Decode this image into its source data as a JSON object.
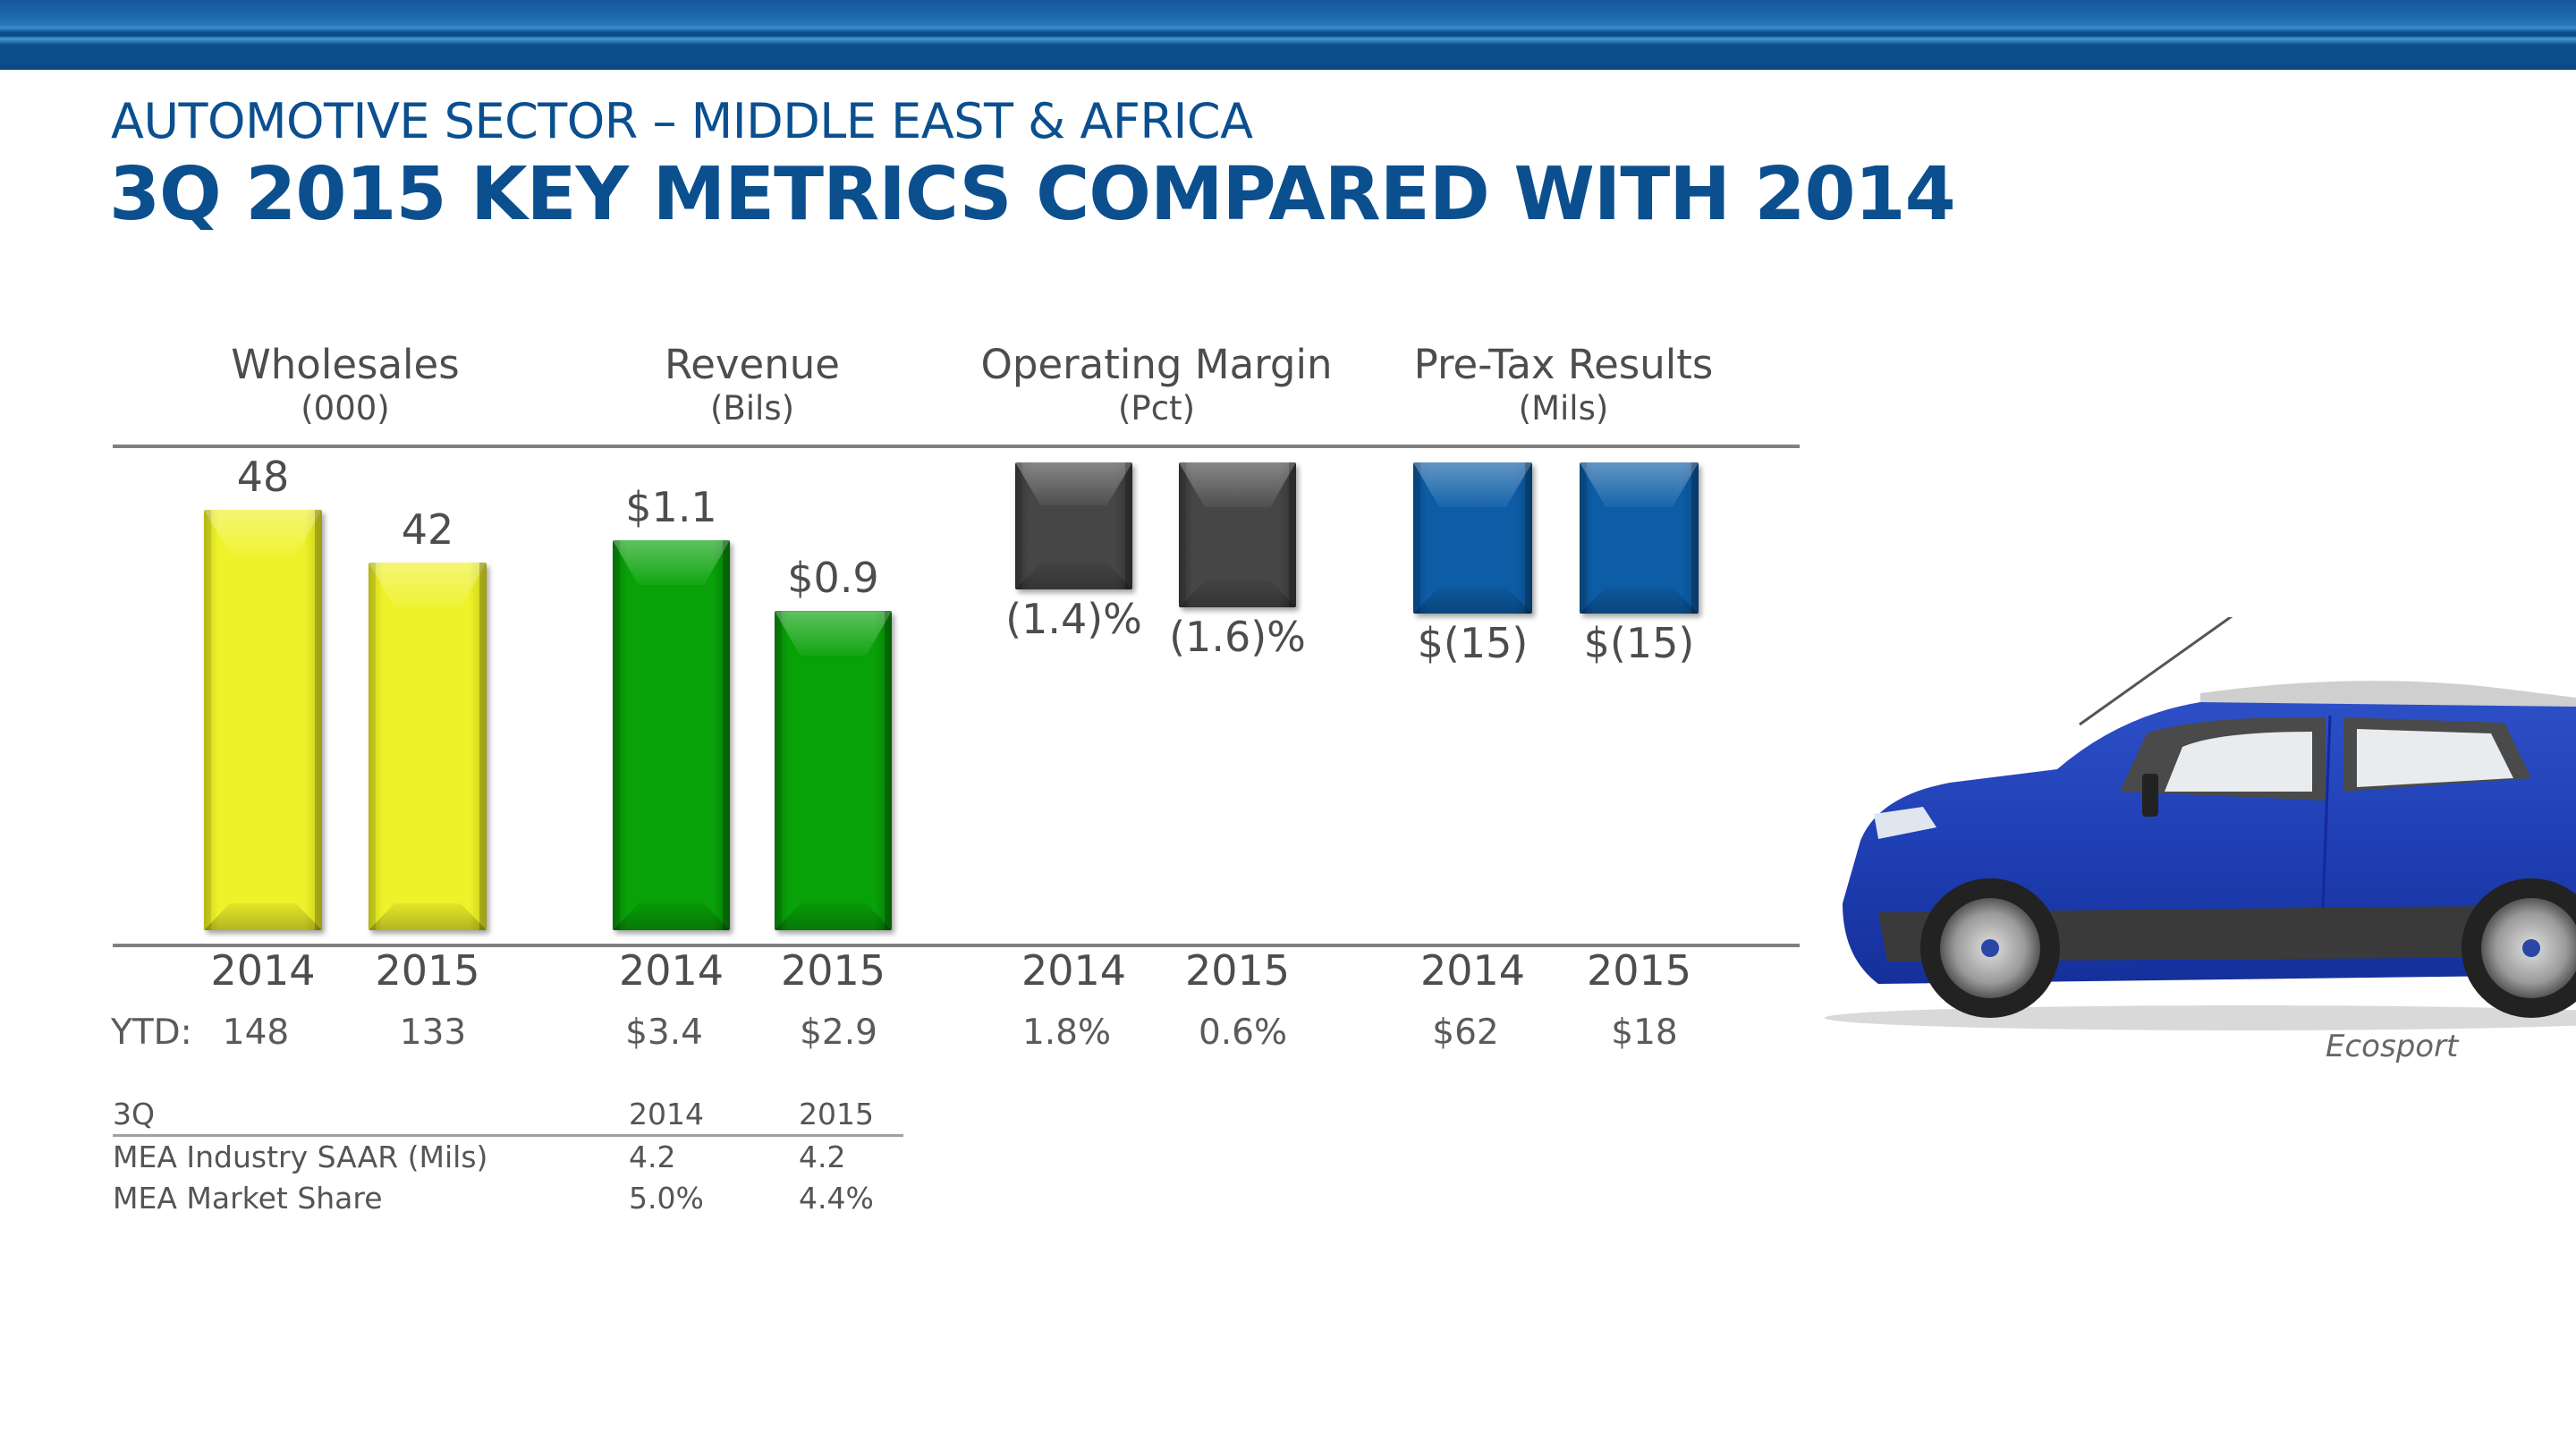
{
  "header": {
    "subtitle": "AUTOMOTIVE SECTOR – MIDDLE EAST & AFRICA",
    "title": "3Q 2015 KEY METRICS COMPARED WITH 2014"
  },
  "colors": {
    "brand_blue": "#0b4f8f",
    "wholesales": "#eef22a",
    "revenue": "#08a108",
    "operating_margin": "#464646",
    "pretax": "#0d5da6"
  },
  "ytd_label": "YTD:",
  "chart_data": [
    {
      "type": "bar",
      "title": "Wholesales",
      "unit": "(000)",
      "categories": [
        "2014",
        "2015"
      ],
      "values": [
        48,
        42
      ],
      "labels": [
        "48",
        "42"
      ],
      "ytd": [
        "148",
        "133"
      ],
      "color": "#eef22a"
    },
    {
      "type": "bar",
      "title": "Revenue",
      "unit": "(Bils)",
      "categories": [
        "2014",
        "2015"
      ],
      "values": [
        1.1,
        0.9
      ],
      "labels": [
        "$1.1",
        "$0.9"
      ],
      "ytd": [
        "$3.4",
        "$2.9"
      ],
      "color": "#08a108"
    },
    {
      "type": "bar",
      "title": "Operating Margin",
      "unit": "(Pct)",
      "categories": [
        "2014",
        "2015"
      ],
      "values": [
        -1.4,
        -1.6
      ],
      "labels": [
        "(1.4)%",
        "(1.6)%"
      ],
      "ytd": [
        "1.8%",
        "0.6%"
      ],
      "color": "#464646"
    },
    {
      "type": "bar",
      "title": "Pre-Tax Results",
      "unit": "(Mils)",
      "categories": [
        "2014",
        "2015"
      ],
      "values": [
        -15,
        -15
      ],
      "labels": [
        "$(15)",
        "$(15)"
      ],
      "ytd": [
        "$62",
        "$18"
      ],
      "color": "#0d5da6"
    }
  ],
  "table": {
    "header": [
      "3Q",
      "2014",
      "2015"
    ],
    "rows": [
      [
        "MEA Industry SAAR (Mils)",
        "4.2",
        "4.2"
      ],
      [
        "MEA Market Share",
        "5.0%",
        "4.4%"
      ]
    ]
  },
  "image": {
    "subject": "blue-suv-car",
    "caption": "Ecosport"
  }
}
